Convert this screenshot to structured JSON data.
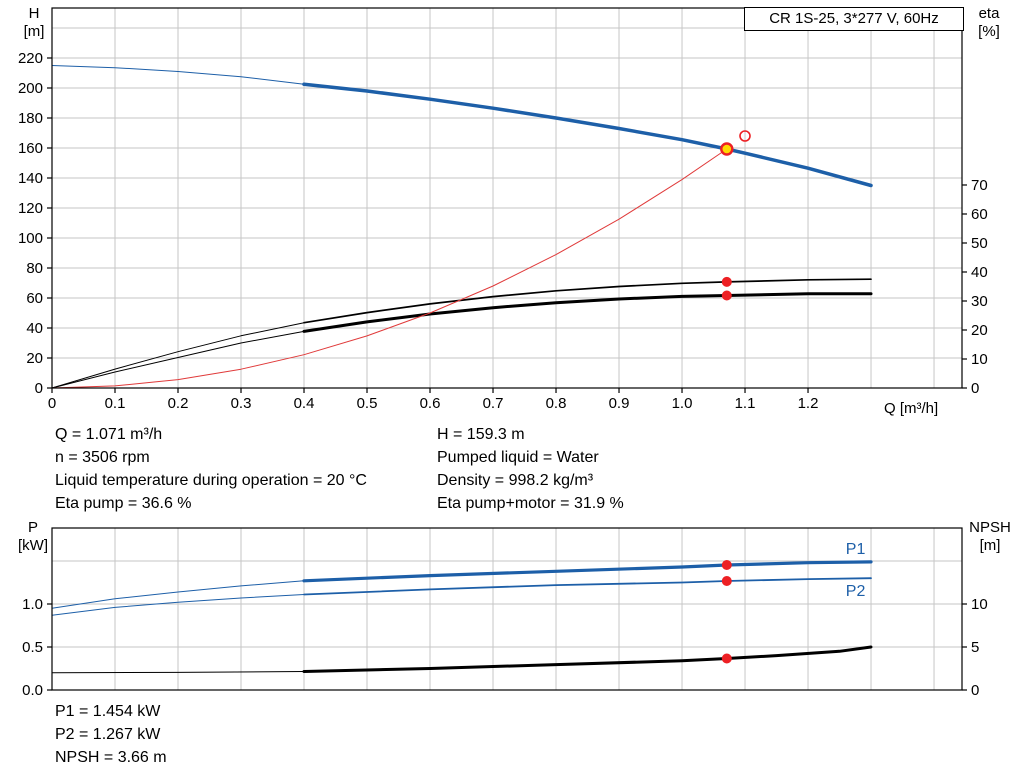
{
  "colors": {
    "curve_blue": "#1d5fa8",
    "curve_black": "#000000",
    "curve_red": "#e03a3a",
    "marker_red": "#ed2024",
    "duty_yellow": "#ffd800",
    "grid": "#c6c6c6",
    "frame": "#000000",
    "label_blue": "#1d5fa8"
  },
  "info_top": {
    "left": [
      "Q = 1.071 m³/h",
      "n = 3506 rpm",
      "Liquid temperature during operation = 20 °C",
      "Eta pump = 36.6 %"
    ],
    "right": [
      "H = 159.3 m",
      "Pumped liquid = Water",
      "Density = 998.2 kg/m³",
      "Eta pump+motor = 31.9 %"
    ]
  },
  "info_bottom": [
    "P1 = 1.454 kW",
    "P2 = 1.267 kW",
    "NPSH = 3.66 m"
  ],
  "chart_data": {
    "type": "line",
    "title": "CR 1S-25, 3*277 V, 60Hz",
    "charts": [
      {
        "id": "head",
        "x_axis": {
          "label": "Q [m³/h]",
          "min": 0,
          "max": 1.4444,
          "grid_step": 0.1,
          "show_tick_labels": true,
          "ticks": [
            {
              "v": 0,
              "t": "0"
            },
            {
              "v": 0.1,
              "t": "0.1"
            },
            {
              "v": 0.2,
              "t": "0.2"
            },
            {
              "v": 0.3,
              "t": "0.3"
            },
            {
              "v": 0.4,
              "t": "0.4"
            },
            {
              "v": 0.5,
              "t": "0.5"
            },
            {
              "v": 0.6,
              "t": "0.6"
            },
            {
              "v": 0.7,
              "t": "0.7"
            },
            {
              "v": 0.8,
              "t": "0.8"
            },
            {
              "v": 0.9,
              "t": "0.9"
            },
            {
              "v": 1.0,
              "t": "1.0"
            },
            {
              "v": 1.1,
              "t": "1.1"
            },
            {
              "v": 1.2,
              "t": "1.2"
            }
          ]
        },
        "left_axis": {
          "label": "H",
          "unit": "[m]",
          "min": 0,
          "max": 253.33,
          "ticks": [
            {
              "v": 0,
              "t": "0"
            },
            {
              "v": 20,
              "t": "20"
            },
            {
              "v": 40,
              "t": "40"
            },
            {
              "v": 60,
              "t": "60"
            },
            {
              "v": 80,
              "t": "80"
            },
            {
              "v": 100,
              "t": "100"
            },
            {
              "v": 120,
              "t": "120"
            },
            {
              "v": 140,
              "t": "140"
            },
            {
              "v": 160,
              "t": "160"
            },
            {
              "v": 180,
              "t": "180"
            },
            {
              "v": 200,
              "t": "200"
            },
            {
              "v": 220,
              "t": "220"
            }
          ],
          "grid": [
            20,
            40,
            60,
            80,
            100,
            120,
            140,
            160,
            180,
            200,
            220,
            240
          ]
        },
        "right_axis": {
          "label": "eta",
          "unit": "[%]",
          "min": 0,
          "max": 131.03,
          "ticks": [
            {
              "v": 0,
              "t": "0"
            },
            {
              "v": 10,
              "t": "10"
            },
            {
              "v": 20,
              "t": "20"
            },
            {
              "v": 30,
              "t": "30"
            },
            {
              "v": 40,
              "t": "40"
            },
            {
              "v": 50,
              "t": "50"
            },
            {
              "v": 60,
              "t": "60"
            },
            {
              "v": 70,
              "t": "70"
            }
          ]
        },
        "series": [
          {
            "name": "head-curve-ext",
            "axis": "left",
            "color": "curve_blue",
            "width": 1,
            "points": [
              [
                0,
                215
              ],
              [
                0.1,
                213.5
              ],
              [
                0.2,
                211
              ],
              [
                0.3,
                207.5
              ],
              [
                0.4,
                202.5
              ]
            ]
          },
          {
            "name": "head-curve",
            "axis": "left",
            "color": "curve_blue",
            "width": 3.5,
            "points": [
              [
                0.4,
                202.5
              ],
              [
                0.5,
                198
              ],
              [
                0.6,
                192.5
              ],
              [
                0.7,
                186.5
              ],
              [
                0.8,
                180
              ],
              [
                0.9,
                173
              ],
              [
                1.0,
                165.5
              ],
              [
                1.071,
                159.3
              ],
              [
                1.1,
                156.5
              ],
              [
                1.2,
                146.5
              ],
              [
                1.3,
                135
              ]
            ]
          },
          {
            "name": "eta-pump-ext",
            "axis": "right",
            "color": "curve_black",
            "width": 1,
            "points": [
              [
                0,
                0
              ],
              [
                0.1,
                6.5
              ],
              [
                0.2,
                12.5
              ],
              [
                0.3,
                18
              ],
              [
                0.4,
                22.5
              ]
            ]
          },
          {
            "name": "eta-pump-curve",
            "axis": "right",
            "color": "curve_black",
            "width": 1.7,
            "points": [
              [
                0.4,
                22.5
              ],
              [
                0.5,
                26
              ],
              [
                0.6,
                29
              ],
              [
                0.7,
                31.5
              ],
              [
                0.8,
                33.5
              ],
              [
                0.9,
                35
              ],
              [
                1.0,
                36.1
              ],
              [
                1.071,
                36.6
              ],
              [
                1.2,
                37.3
              ],
              [
                1.3,
                37.5
              ]
            ]
          },
          {
            "name": "eta-pump-motor-ext",
            "axis": "right",
            "color": "curve_black",
            "width": 1,
            "points": [
              [
                0,
                0
              ],
              [
                0.1,
                5.5
              ],
              [
                0.2,
                10.5
              ],
              [
                0.3,
                15.5
              ],
              [
                0.4,
                19.5
              ]
            ]
          },
          {
            "name": "eta-pump-motor-curve",
            "axis": "right",
            "color": "curve_black",
            "width": 3,
            "points": [
              [
                0.4,
                19.5
              ],
              [
                0.5,
                22.8
              ],
              [
                0.6,
                25.5
              ],
              [
                0.7,
                27.7
              ],
              [
                0.8,
                29.4
              ],
              [
                0.9,
                30.7
              ],
              [
                1.0,
                31.6
              ],
              [
                1.071,
                31.9
              ],
              [
                1.2,
                32.5
              ],
              [
                1.3,
                32.5
              ]
            ]
          },
          {
            "name": "system-curve",
            "axis": "left",
            "color": "curve_red",
            "width": 1,
            "points": [
              [
                0,
                0
              ],
              [
                0.1,
                1.4
              ],
              [
                0.2,
                5.6
              ],
              [
                0.3,
                12.5
              ],
              [
                0.4,
                22.2
              ],
              [
                0.5,
                34.7
              ],
              [
                0.6,
                50
              ],
              [
                0.7,
                68
              ],
              [
                0.8,
                88.9
              ],
              [
                0.9,
                112.5
              ],
              [
                1.0,
                138.9
              ],
              [
                1.071,
                159.3
              ]
            ]
          }
        ],
        "markers": [
          {
            "name": "duty-point",
            "x": 1.071,
            "y": 159.3,
            "axis": "left",
            "type": "duty"
          },
          {
            "name": "rated-point",
            "x": 1.1,
            "y": 168,
            "axis": "left",
            "type": "open"
          },
          {
            "name": "eta-pump-point",
            "x": 1.071,
            "y": 36.6,
            "axis": "right",
            "type": "dot"
          },
          {
            "name": "eta-pump-motor-point",
            "x": 1.071,
            "y": 31.9,
            "axis": "right",
            "type": "dot"
          }
        ],
        "labels": []
      },
      {
        "id": "power",
        "x_axis": {
          "label": "",
          "min": 0,
          "max": 1.4444,
          "grid_step": 0.1,
          "show_tick_labels": false,
          "ticks": []
        },
        "left_axis": {
          "label": "P",
          "unit": "[kW]",
          "min": 0,
          "max": 1.8837,
          "ticks": [
            {
              "v": 0,
              "t": "0.0"
            },
            {
              "v": 0.5,
              "t": "0.5"
            },
            {
              "v": 1.0,
              "t": "1.0"
            }
          ],
          "grid": [
            0.5,
            1.0,
            1.5
          ]
        },
        "right_axis": {
          "label": "NPSH",
          "unit": "[m]",
          "min": 0,
          "max": 18.837,
          "ticks": [
            {
              "v": 0,
              "t": "0"
            },
            {
              "v": 5,
              "t": "5"
            },
            {
              "v": 10,
              "t": "10"
            }
          ]
        },
        "series": [
          {
            "name": "p1-ext",
            "axis": "left",
            "color": "curve_blue",
            "width": 1,
            "points": [
              [
                0,
                0.95
              ],
              [
                0.1,
                1.06
              ],
              [
                0.2,
                1.14
              ],
              [
                0.3,
                1.21
              ],
              [
                0.4,
                1.27
              ]
            ]
          },
          {
            "name": "p1-curve",
            "axis": "left",
            "color": "curve_blue",
            "width": 3.2,
            "points": [
              [
                0.4,
                1.27
              ],
              [
                0.6,
                1.33
              ],
              [
                0.8,
                1.38
              ],
              [
                1.0,
                1.43
              ],
              [
                1.071,
                1.454
              ],
              [
                1.2,
                1.48
              ],
              [
                1.3,
                1.49
              ]
            ]
          },
          {
            "name": "p2-ext",
            "axis": "left",
            "color": "curve_blue",
            "width": 1,
            "points": [
              [
                0,
                0.87
              ],
              [
                0.1,
                0.96
              ],
              [
                0.2,
                1.02
              ],
              [
                0.3,
                1.07
              ],
              [
                0.4,
                1.11
              ]
            ]
          },
          {
            "name": "p2-curve",
            "axis": "left",
            "color": "curve_blue",
            "width": 1.8,
            "points": [
              [
                0.4,
                1.11
              ],
              [
                0.6,
                1.17
              ],
              [
                0.8,
                1.22
              ],
              [
                1.0,
                1.25
              ],
              [
                1.071,
                1.267
              ],
              [
                1.2,
                1.29
              ],
              [
                1.3,
                1.3
              ]
            ]
          },
          {
            "name": "npsh-ext",
            "axis": "right",
            "color": "curve_black",
            "width": 1,
            "points": [
              [
                0,
                2.0
              ],
              [
                0.2,
                2.05
              ],
              [
                0.4,
                2.15
              ]
            ]
          },
          {
            "name": "npsh-curve",
            "axis": "right",
            "color": "curve_black",
            "width": 3,
            "points": [
              [
                0.4,
                2.15
              ],
              [
                0.6,
                2.5
              ],
              [
                0.8,
                2.95
              ],
              [
                1.0,
                3.4
              ],
              [
                1.071,
                3.66
              ],
              [
                1.15,
                4.0
              ],
              [
                1.25,
                4.5
              ],
              [
                1.3,
                5.0
              ]
            ]
          }
        ],
        "markers": [
          {
            "name": "p1-point",
            "x": 1.071,
            "y": 1.454,
            "axis": "left",
            "type": "dot"
          },
          {
            "name": "p2-point",
            "x": 1.071,
            "y": 1.267,
            "axis": "left",
            "type": "dot"
          },
          {
            "name": "npsh-point",
            "x": 1.071,
            "y": 3.66,
            "axis": "right",
            "type": "dot"
          }
        ],
        "labels": [
          {
            "text": "P1",
            "x": 1.26,
            "y": 1.64,
            "axis": "left",
            "color": "label_blue"
          },
          {
            "text": "P2",
            "x": 1.26,
            "y": 1.15,
            "axis": "left",
            "color": "label_blue"
          }
        ]
      }
    ]
  }
}
